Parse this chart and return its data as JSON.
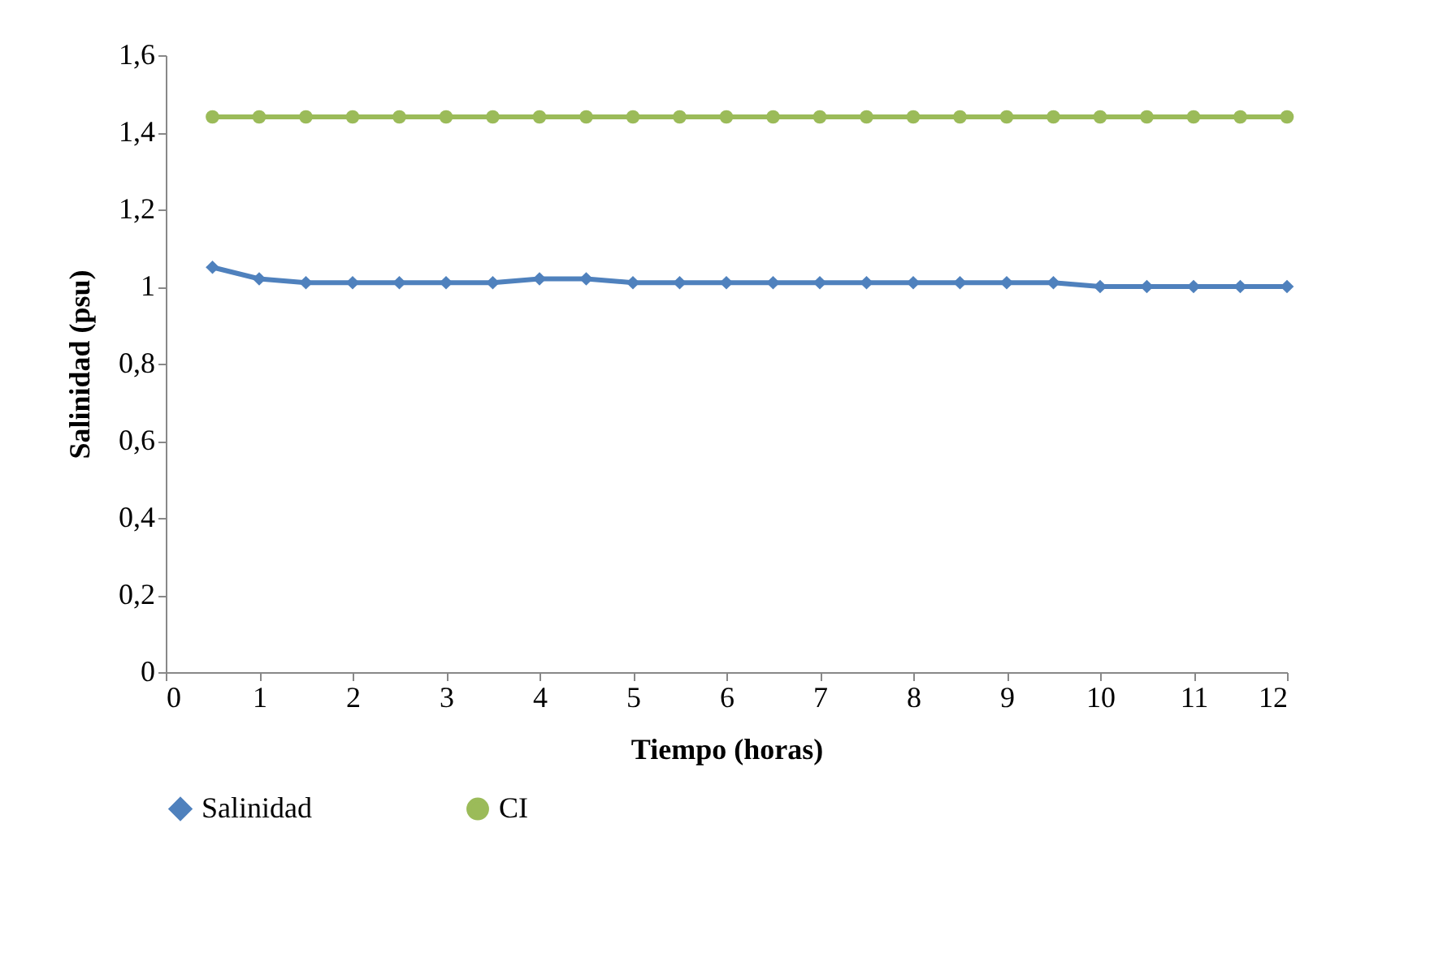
{
  "chart_data": {
    "type": "line",
    "xlabel": "Tiempo (horas)",
    "ylabel": "Salinidad (psu)",
    "x": [
      0.5,
      1,
      1.5,
      2,
      2.5,
      3,
      3.5,
      4,
      4.5,
      5,
      5.5,
      6,
      6.5,
      7,
      7.5,
      8,
      8.5,
      9,
      9.5,
      10,
      10.5,
      11,
      11.5,
      12
    ],
    "series": [
      {
        "name": "Salinidad",
        "color": "#4f81bd",
        "marker": "diamond",
        "values": [
          1.05,
          1.02,
          1.01,
          1.01,
          1.01,
          1.01,
          1.01,
          1.02,
          1.02,
          1.01,
          1.01,
          1.01,
          1.01,
          1.01,
          1.01,
          1.01,
          1.01,
          1.01,
          1.01,
          1.0,
          1.0,
          1.0,
          1.0,
          1.0
        ]
      },
      {
        "name": "CI",
        "color": "#9bbb59",
        "marker": "circle",
        "values": [
          1.44,
          1.44,
          1.44,
          1.44,
          1.44,
          1.44,
          1.44,
          1.44,
          1.44,
          1.44,
          1.44,
          1.44,
          1.44,
          1.44,
          1.44,
          1.44,
          1.44,
          1.44,
          1.44,
          1.44,
          1.44,
          1.44,
          1.44,
          1.44
        ]
      }
    ],
    "xlim": [
      0,
      12
    ],
    "xticks": [
      0,
      1,
      2,
      3,
      4,
      5,
      6,
      7,
      8,
      9,
      10,
      11,
      12
    ],
    "ylim": [
      0,
      1.6
    ],
    "yticks": [
      0,
      {
        "value": 0.2,
        "label": "0,2"
      },
      {
        "value": 0.4,
        "label": "0,4"
      },
      {
        "value": 0.6,
        "label": "0,6"
      },
      {
        "value": 0.8,
        "label": "0,8"
      },
      1,
      {
        "value": 1.2,
        "label": "1,2"
      },
      {
        "value": 1.4,
        "label": "1,4"
      },
      {
        "value": 1.6,
        "label": "1,6"
      }
    ],
    "grid": false,
    "legend": "bottom",
    "line_style": "solid"
  }
}
